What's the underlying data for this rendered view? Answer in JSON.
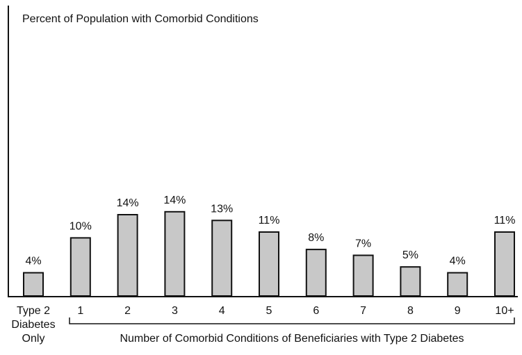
{
  "chart_data": {
    "type": "bar",
    "title": "",
    "ylabel": "Percent of Population with Comorbid Conditions",
    "xlabel": "Number of Comorbid Conditions of Beneficiaries with Type 2 Diabetes",
    "categories": [
      [
        "Type 2",
        "Diabetes",
        "Only"
      ],
      [
        "1"
      ],
      [
        "2"
      ],
      [
        "3"
      ],
      [
        "4"
      ],
      [
        "5"
      ],
      [
        "6"
      ],
      [
        "7"
      ],
      [
        "8"
      ],
      [
        "9"
      ],
      [
        "10+"
      ]
    ],
    "values": [
      4,
      10,
      14,
      14.5,
      13,
      11,
      8,
      7,
      5,
      4,
      11
    ],
    "value_labels": [
      "4%",
      "10%",
      "14%",
      "14%",
      "13%",
      "11%",
      "8%",
      "7%",
      "5%",
      "4%",
      "11%"
    ],
    "ylim": [
      0,
      50
    ],
    "grid": false,
    "legend": "none",
    "bar_color": "#c8c8c8",
    "bar_edge_color": "#111111"
  }
}
